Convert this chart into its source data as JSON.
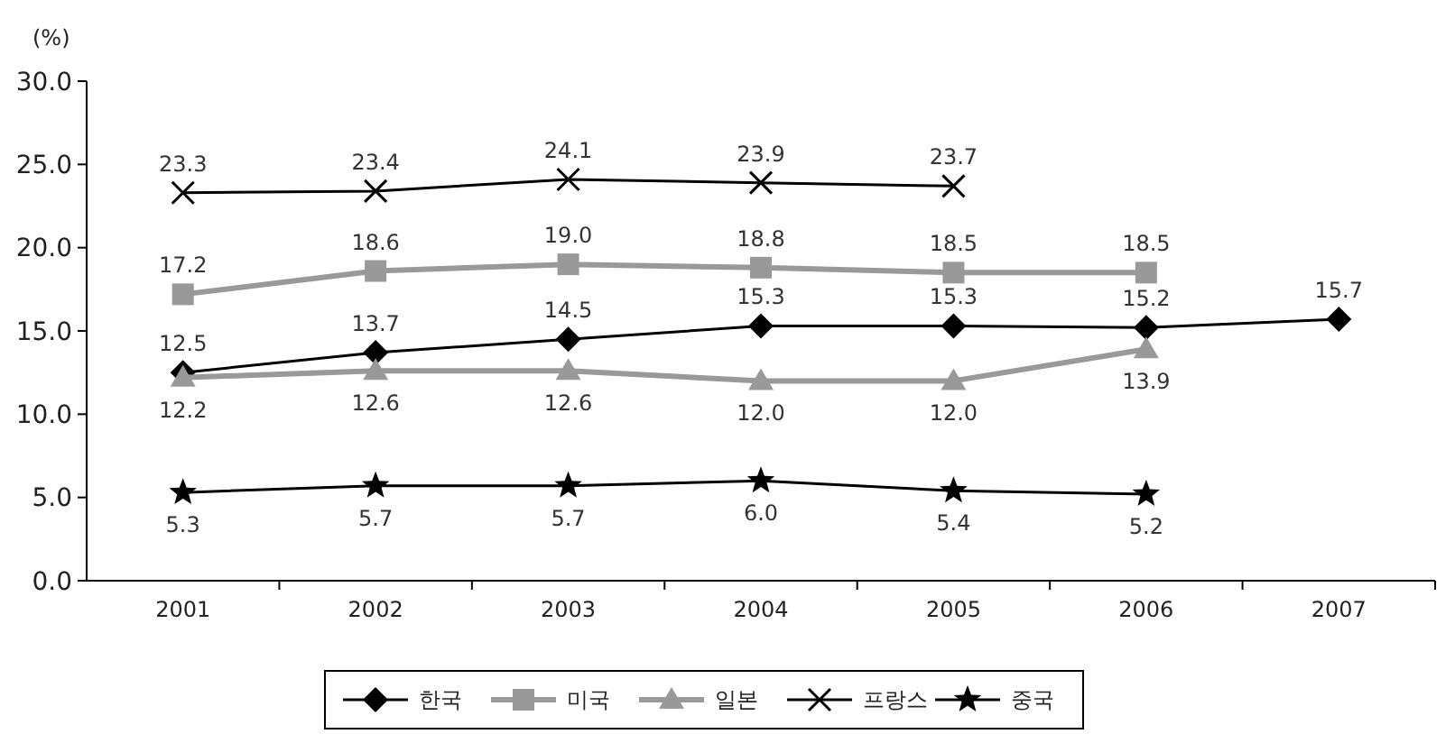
{
  "chart_data": {
    "type": "line",
    "ylabel": "(%)",
    "categories": [
      "2001",
      "2002",
      "2003",
      "2004",
      "2005",
      "2006",
      "2007"
    ],
    "series": [
      {
        "name": "한국",
        "color": "#000000",
        "marker": "diamond",
        "values": [
          12.5,
          13.7,
          14.5,
          15.3,
          15.3,
          15.2,
          15.7
        ],
        "value_labels": [
          "12.5",
          "13.7",
          "14.5",
          "15.3",
          "15.3",
          "15.2",
          "15.7"
        ]
      },
      {
        "name": "미국",
        "color": "#999999",
        "marker": "square",
        "values": [
          17.2,
          18.6,
          19.0,
          18.8,
          18.5,
          18.5,
          null
        ],
        "value_labels": [
          "17.2",
          "18.6",
          "19.0",
          "18.8",
          "18.5",
          "18.5",
          null
        ]
      },
      {
        "name": "일본",
        "color": "#999999",
        "marker": "triangle",
        "values": [
          12.2,
          12.6,
          12.6,
          12.0,
          12.0,
          13.9,
          null
        ],
        "value_labels": [
          "12.2",
          "12.6",
          "12.6",
          "12.0",
          "12.0",
          "13.9",
          null
        ]
      },
      {
        "name": "프랑스",
        "color": "#000000",
        "marker": "cross",
        "values": [
          23.3,
          23.4,
          24.1,
          23.9,
          23.7,
          null,
          null
        ],
        "value_labels": [
          "23.3",
          "23.4",
          "24.1",
          "23.9",
          "23.7",
          null,
          null
        ]
      },
      {
        "name": "중국",
        "color": "#000000",
        "marker": "star",
        "values": [
          5.3,
          5.7,
          5.7,
          6.0,
          5.4,
          5.2,
          null
        ],
        "value_labels": [
          "5.3",
          "5.7",
          "5.7",
          "6.0",
          "5.4",
          "5.2",
          null
        ]
      }
    ],
    "ylim": [
      0,
      30
    ],
    "yticks": [
      {
        "value": 0,
        "label": "0.0"
      },
      {
        "value": 5,
        "label": "5.0"
      },
      {
        "value": 10,
        "label": "10.0"
      },
      {
        "value": 15,
        "label": "15.0"
      },
      {
        "value": 20,
        "label": "20.0"
      },
      {
        "value": 25,
        "label": "25.0"
      },
      {
        "value": 30,
        "label": "30.0"
      }
    ],
    "grid": false,
    "legend": "bottom",
    "line_style": "solid"
  }
}
